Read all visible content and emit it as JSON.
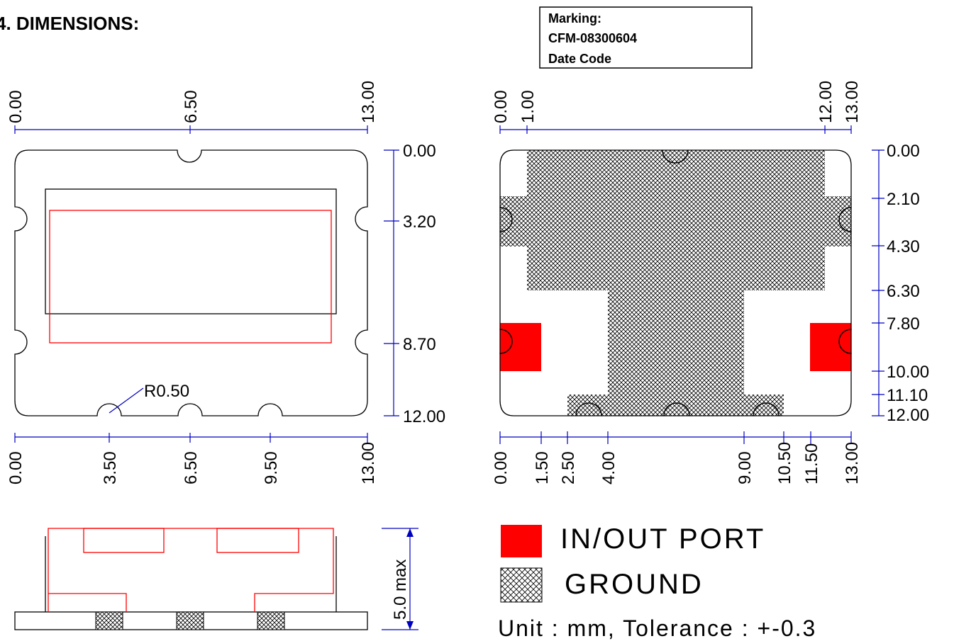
{
  "heading": "4. DIMENSIONS:",
  "marking": {
    "label": "Marking:",
    "part_number": "CFM-08300604",
    "date_code": "Date Code"
  },
  "top_view": {
    "top_ticks": [
      "0.00",
      "6.50",
      "13.00"
    ],
    "right_ticks": [
      "0.00",
      "3.20",
      "8.70",
      "12.00"
    ],
    "bottom_ticks": [
      "0.00",
      "3.50",
      "6.50",
      "9.50",
      "13.00"
    ],
    "radius_label": "R0.50"
  },
  "bottom_view": {
    "top_ticks": [
      "0.00",
      "1.00",
      "12.00",
      "13.00"
    ],
    "right_ticks": [
      "0.00",
      "2.10",
      "4.30",
      "6.30",
      "7.80",
      "10.00",
      "11.10",
      "12.00"
    ],
    "bottom_ticks": [
      "0.00",
      "1.50",
      "2.50",
      "4.00",
      "9.00",
      "10.50",
      "11.50",
      "13.00"
    ]
  },
  "side_view": {
    "height_label": "5.0 max"
  },
  "legend": {
    "port_label": "IN/OUT PORT",
    "ground_label": "GROUND",
    "port_color": "#ff0000",
    "ground_pattern": "crosshatch"
  },
  "unit_line": "Unit : mm, Tolerance : +-0.3"
}
